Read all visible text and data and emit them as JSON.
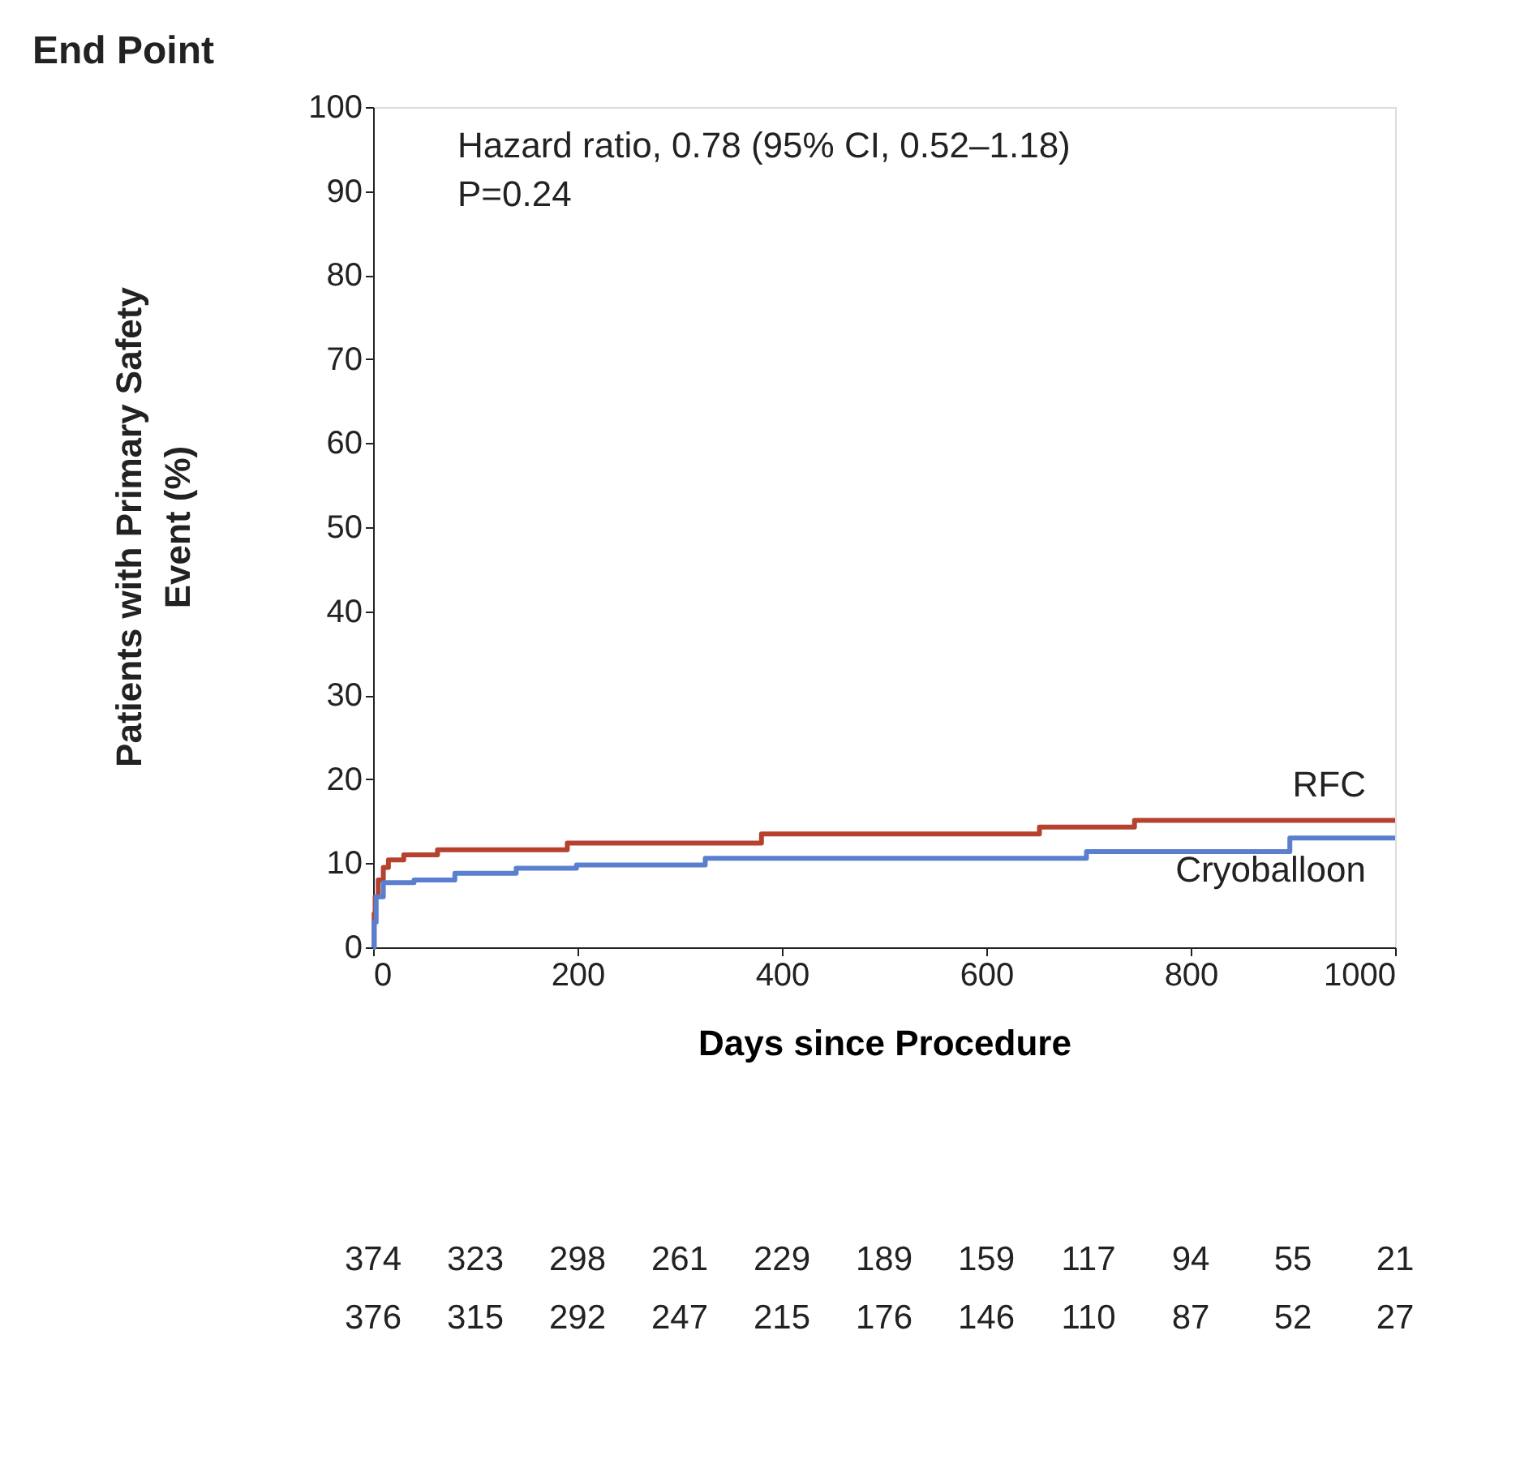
{
  "chart_data": {
    "type": "step",
    "title": "End Point",
    "xlabel": "Days since Procedure",
    "ylabel": "Patients with Primary Safety Event (%)",
    "xlim": [
      0,
      1000
    ],
    "xticks": [
      0,
      200,
      400,
      600,
      800,
      {
        "value": 1000,
        "label": "1000"
      }
    ],
    "ylim": [
      0,
      100
    ],
    "yticks": [
      0,
      10,
      20,
      30,
      40,
      50,
      60,
      70,
      80,
      90,
      100
    ],
    "grid": false,
    "legend": false,
    "marker": "none",
    "line_style": "solid",
    "series": [
      {
        "name": "RFC",
        "color": "#b5412e",
        "x": [
          0,
          1,
          2,
          5,
          10,
          15,
          30,
          63,
          180,
          190,
          371,
          380,
          652,
          745,
          1000
        ],
        "values": [
          0,
          4,
          6,
          8,
          9.5,
          10.4,
          11,
          11.6,
          11.6,
          12.4,
          12.4,
          13.5,
          14.3,
          15.1,
          15.1
        ]
      },
      {
        "name": "Cryoballoon",
        "color": "#5b7fcf",
        "x": [
          0,
          1,
          3,
          10,
          40,
          80,
          140,
          199,
          325,
          698,
          897,
          1000
        ],
        "values": [
          0,
          3,
          6,
          7.7,
          8,
          8.8,
          9.4,
          9.8,
          10.6,
          11.4,
          13.0,
          13.0
        ]
      }
    ],
    "annotations": [
      "Hazard ratio, 0.78 (95% CI, 0.52–1.18)",
      "P=0.24",
      "374 323 298 261 229 189 159 117 94 55 21",
      "376 315 292 247 215 176 146 110 87 52 27"
    ]
  }
}
